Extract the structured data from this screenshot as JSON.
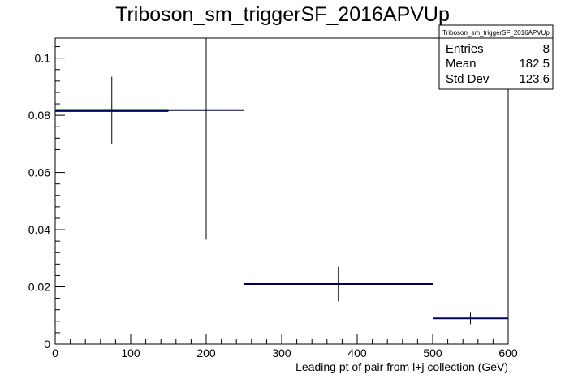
{
  "chart_data": {
    "type": "histogram",
    "title": "Triboson_sm_triggerSF_2016APVUp",
    "xlabel": "Leading pt of pair from l+j collection (GeV)",
    "ylabel": "",
    "xlim": [
      0,
      600
    ],
    "ylim": [
      0,
      0.107
    ],
    "x_ticks": [
      0,
      100,
      200,
      300,
      400,
      500,
      600
    ],
    "x_tick_labels": [
      "0",
      "100",
      "200",
      "300",
      "400",
      "500",
      "600"
    ],
    "y_ticks": [
      0,
      0.02,
      0.04,
      0.06,
      0.08,
      0.1
    ],
    "y_tick_labels": [
      "0",
      "0.02",
      "0.04",
      "0.06",
      "0.08",
      "0.1"
    ],
    "bins": [
      {
        "xlow": 0,
        "xhigh": 150,
        "center": 75,
        "value": 0.0815,
        "err_low": 0.07,
        "err_high": 0.0935
      },
      {
        "xlow": 150,
        "xhigh": 250,
        "center": 200,
        "value": 0.0818,
        "err_low": 0.0365,
        "err_high": 0.107
      },
      {
        "xlow": 250,
        "xhigh": 500,
        "center": 375,
        "value": 0.021,
        "err_low": 0.015,
        "err_high": 0.027
      },
      {
        "xlow": 500,
        "xhigh": 600,
        "center": 550,
        "value": 0.009,
        "err_low": 0.007,
        "err_high": 0.011
      }
    ],
    "overlay": {
      "xlow": 0,
      "xhigh": 150,
      "value": 0.0818
    },
    "stats_box": {
      "header": "Triboson_sm_triggerSF_2016APVUp",
      "rows": [
        {
          "label": "Entries",
          "value": "8"
        },
        {
          "label": "Mean",
          "value": "182.5"
        },
        {
          "label": "Std Dev",
          "value": "123.6"
        }
      ]
    },
    "colors": {
      "hist": "#000066",
      "overlay": "#2e8b2e",
      "error": "#000000",
      "axis": "#000000"
    }
  }
}
